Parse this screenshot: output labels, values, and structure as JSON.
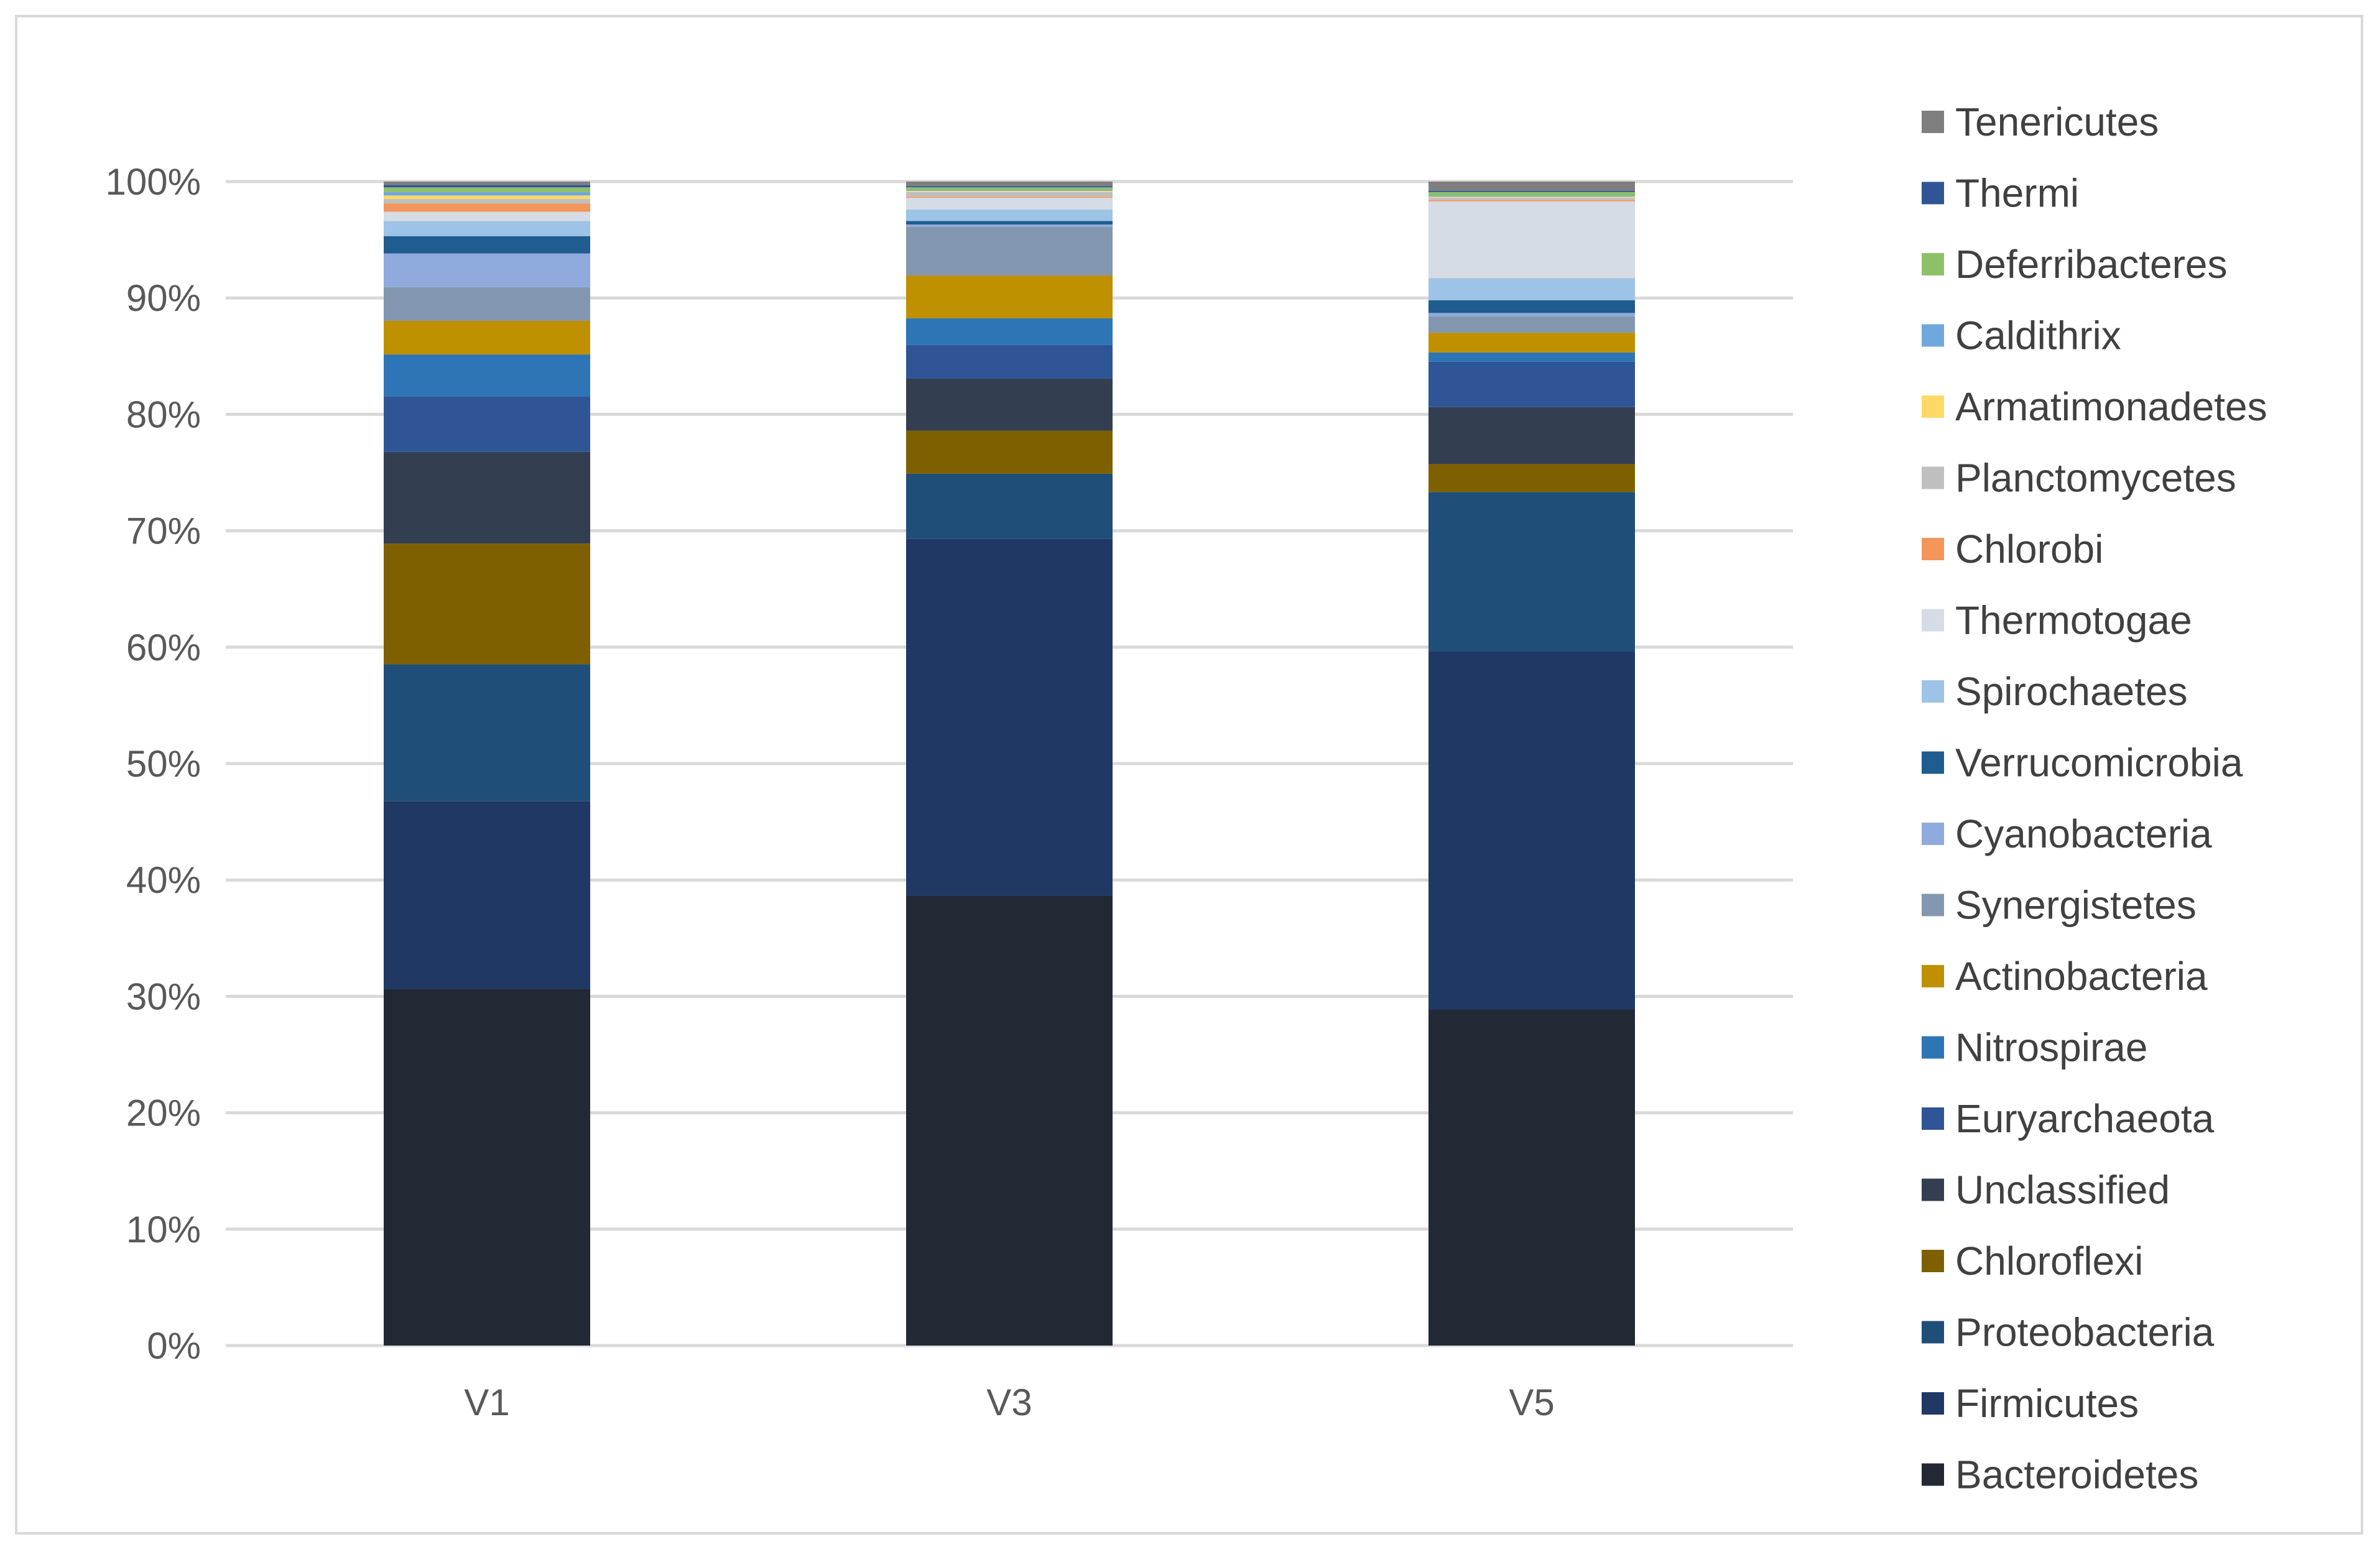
{
  "chart_data": {
    "type": "bar",
    "stacked": "percent",
    "categories": [
      "V1",
      "V3",
      "V5"
    ],
    "y_ticks": [
      "0%",
      "10%",
      "20%",
      "30%",
      "40%",
      "50%",
      "60%",
      "70%",
      "80%",
      "90%",
      "100%"
    ],
    "ylim": [
      0,
      100
    ],
    "grid": true,
    "legend_position": "right",
    "series": [
      {
        "name": "Bacteroidetes",
        "color": "#222935",
        "values": [
          30.7,
          38.8,
          28.9
        ]
      },
      {
        "name": "Firmicutes",
        "color": "#203864",
        "values": [
          16.2,
          30.8,
          30.8
        ]
      },
      {
        "name": "Proteobacteria",
        "color": "#1f4e79",
        "values": [
          11.8,
          5.6,
          13.7
        ]
      },
      {
        "name": "Chloroflexi",
        "color": "#7f6000",
        "values": [
          10.4,
          3.7,
          2.4
        ]
      },
      {
        "name": "Unclassified",
        "color": "#333f50",
        "values": [
          7.9,
          4.5,
          4.9
        ]
      },
      {
        "name": "Euryarchaeota",
        "color": "#2f5597",
        "values": [
          4.8,
          2.9,
          3.9
        ]
      },
      {
        "name": "Nitrospirae",
        "color": "#2e75b6",
        "values": [
          3.6,
          2.3,
          0.8
        ]
      },
      {
        "name": "Actinobacteria",
        "color": "#bf9000",
        "values": [
          2.9,
          3.7,
          1.7
        ]
      },
      {
        "name": "Synergistetes",
        "color": "#8497b0",
        "values": [
          2.9,
          4.2,
          1.4
        ]
      },
      {
        "name": "Cyanobacteria",
        "color": "#8faadc",
        "values": [
          2.9,
          0.2,
          0.3
        ]
      },
      {
        "name": "Verrucomicrobia",
        "color": "#1f5c8f",
        "values": [
          1.5,
          0.3,
          1.1
        ]
      },
      {
        "name": "Spirochaetes",
        "color": "#9dc3e6",
        "values": [
          1.3,
          1.0,
          1.9
        ]
      },
      {
        "name": "Thermotogae",
        "color": "#d6dce5",
        "values": [
          0.8,
          1.0,
          6.6
        ]
      },
      {
        "name": "Chlorobi",
        "color": "#f4955a",
        "values": [
          0.7,
          0.1,
          0.1
        ]
      },
      {
        "name": "Planctomycetes",
        "color": "#bfbfbf",
        "values": [
          0.4,
          0.4,
          0.2
        ]
      },
      {
        "name": "Armatimonadetes",
        "color": "#ffd966",
        "values": [
          0.3,
          0.1,
          0.1
        ]
      },
      {
        "name": "Caldithrix",
        "color": "#6fa8dc",
        "values": [
          0.3,
          0.1,
          0.1
        ]
      },
      {
        "name": "Deferribacteres",
        "color": "#8cc168",
        "values": [
          0.4,
          0.2,
          0.3
        ]
      },
      {
        "name": "Thermi",
        "color": "#2f5597",
        "values": [
          0.2,
          0.1,
          0.1
        ]
      },
      {
        "name": "Tenericutes",
        "color": "#7f7f7f",
        "values": [
          0.3,
          0.4,
          0.8
        ]
      }
    ]
  }
}
